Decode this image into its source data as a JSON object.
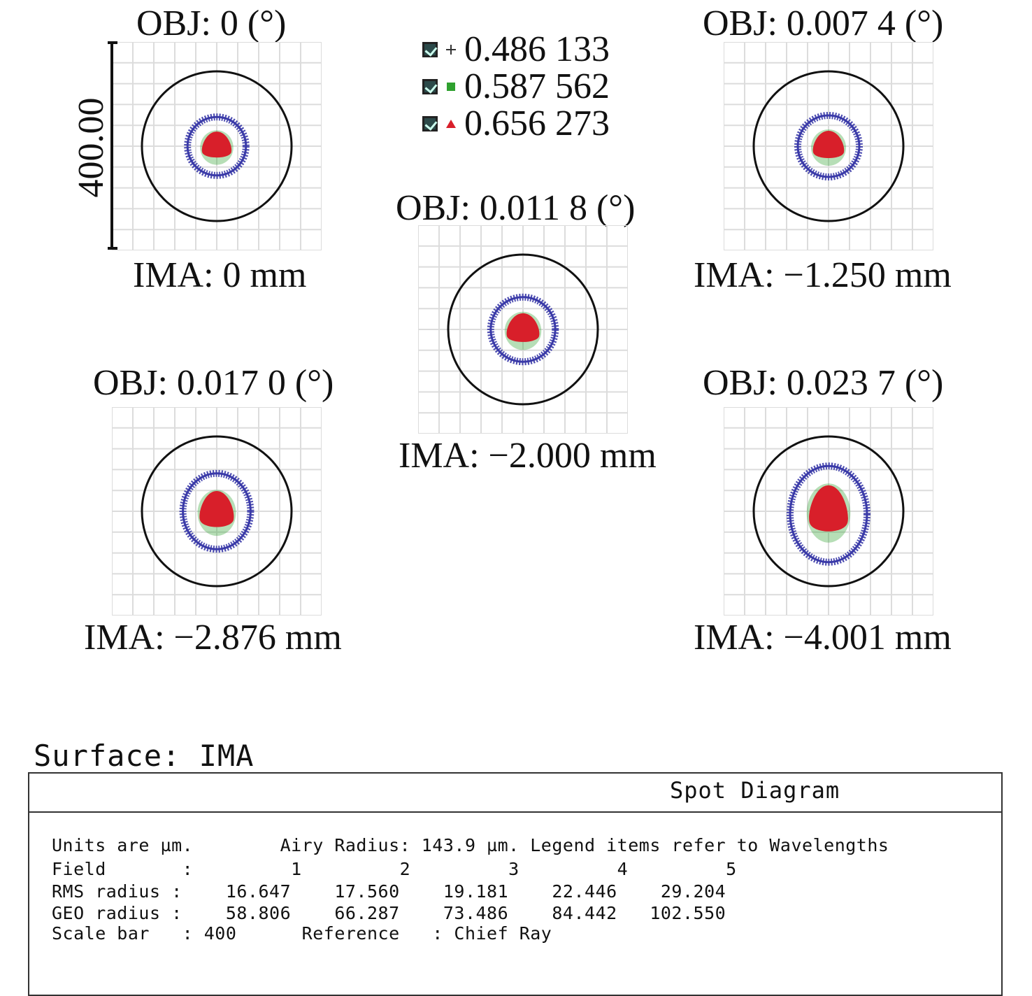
{
  "legend": {
    "items": [
      {
        "symbol": "plus",
        "color": "#3a3aa8",
        "label": "0.486 133"
      },
      {
        "symbol": "square",
        "color": "#2fa12f",
        "label": "0.587 562"
      },
      {
        "symbol": "triangle",
        "color": "#d81f2a",
        "label": "0.656 273"
      }
    ]
  },
  "scale_bar": {
    "label": "400.00"
  },
  "fields": [
    {
      "obj": "OBJ: 0 (°)",
      "ima": "IMA: 0 mm",
      "rms": 16.647,
      "geo": 58.806
    },
    {
      "obj": "OBJ: 0.007 4 (°)",
      "ima": "IMA: −1.250 mm",
      "rms": 17.56,
      "geo": 66.287
    },
    {
      "obj": "OBJ: 0.011 8 (°)",
      "ima": "IMA: −2.000 mm",
      "rms": 19.181,
      "geo": 73.486
    },
    {
      "obj": "OBJ: 0.017 0 (°)",
      "ima": "IMA: −2.876 mm",
      "rms": 22.446,
      "geo": 84.442
    },
    {
      "obj": "OBJ: 0.023 7 (°)",
      "ima": "IMA: −4.001 mm",
      "rms": 29.204,
      "geo": 102.55
    }
  ],
  "colors": {
    "blue_ring": "#3a3aa8",
    "red_spot": "#d81f2a",
    "green": "#2fa12f",
    "grid": "#dcdcdc",
    "circle": "#111111"
  },
  "surface": {
    "label": "Surface: IMA"
  },
  "info": {
    "title": "Spot Diagram",
    "line1": "Units are µm.        Airy Radius: 143.9 µm. Legend items refer to Wavelengths",
    "line2": "Field       :         1         2         3         4         5",
    "line3": "RMS radius :    16.647    17.560    19.181    22.446    29.204",
    "line4": "GEO radius :    58.806    66.287    73.486    84.442   102.550",
    "line5": "Scale bar   : 400      Reference   : Chief Ray"
  }
}
